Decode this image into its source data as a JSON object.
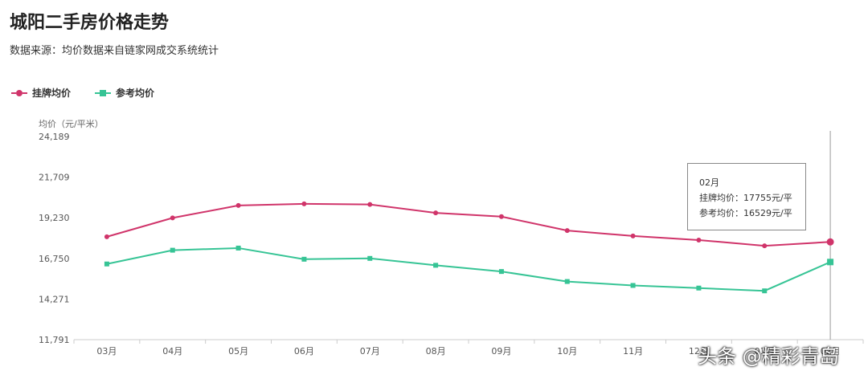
{
  "page": {
    "title": "城阳二手房价格走势",
    "subtitle": "数据来源：均价数据来自链家网成交系统统计"
  },
  "tooltip": {
    "month": "02月",
    "line1": "挂牌均价：17755元/平",
    "line2": "参考均价：16529元/平"
  },
  "watermark": "头条 @精彩青岛",
  "chart_data": {
    "type": "line",
    "ylabel": "均价（元/平米）",
    "xlabel": "",
    "ylim": [
      11791,
      24189
    ],
    "yticks": [
      11791,
      14271,
      16750,
      19230,
      21709,
      24189
    ],
    "ytick_labels": [
      "11,791",
      "14,271",
      "16,750",
      "19,230",
      "21,709",
      "24,189"
    ],
    "categories": [
      "03月",
      "04月",
      "05月",
      "06月",
      "07月",
      "08月",
      "09月",
      "10月",
      "11月",
      "12月",
      "01月",
      "02月"
    ],
    "xtick_labels": [
      "03月",
      "04月",
      "05月",
      "06月",
      "07月",
      "08月",
      "09月",
      "10月",
      "11月",
      "12月",
      "01月",
      "02月"
    ],
    "legend_position": "top-left",
    "grid": false,
    "series": [
      {
        "name": "挂牌均价",
        "color": "#d0346a",
        "marker": "circle",
        "values": [
          18070,
          19220,
          19980,
          20080,
          20040,
          19530,
          19300,
          18450,
          18120,
          17870,
          17520,
          17755
        ]
      },
      {
        "name": "参考均价",
        "color": "#36c495",
        "marker": "square",
        "values": [
          16410,
          17250,
          17380,
          16700,
          16750,
          16330,
          15950,
          15340,
          15100,
          14940,
          14770,
          16529
        ]
      }
    ]
  }
}
